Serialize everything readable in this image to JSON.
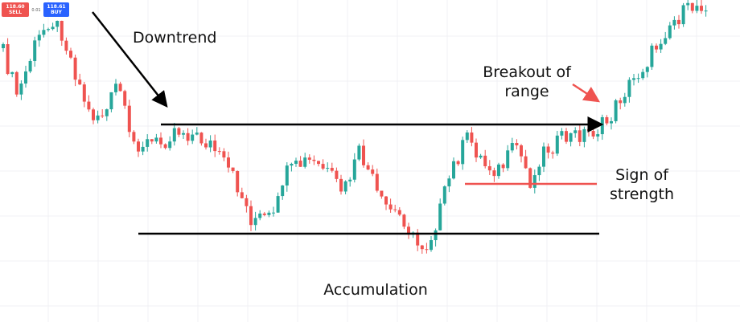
{
  "trade_buttons": {
    "sell": {
      "price": "118.60",
      "label": "SELL"
    },
    "spread": "0.01",
    "buy": {
      "price": "118.61",
      "label": "BUY"
    }
  },
  "annotations": {
    "downtrend": "Downtrend",
    "breakout": [
      "Breakout of",
      "range"
    ],
    "strength": [
      "Sign of",
      "strength"
    ],
    "accumulation": "Accumulation"
  }
}
